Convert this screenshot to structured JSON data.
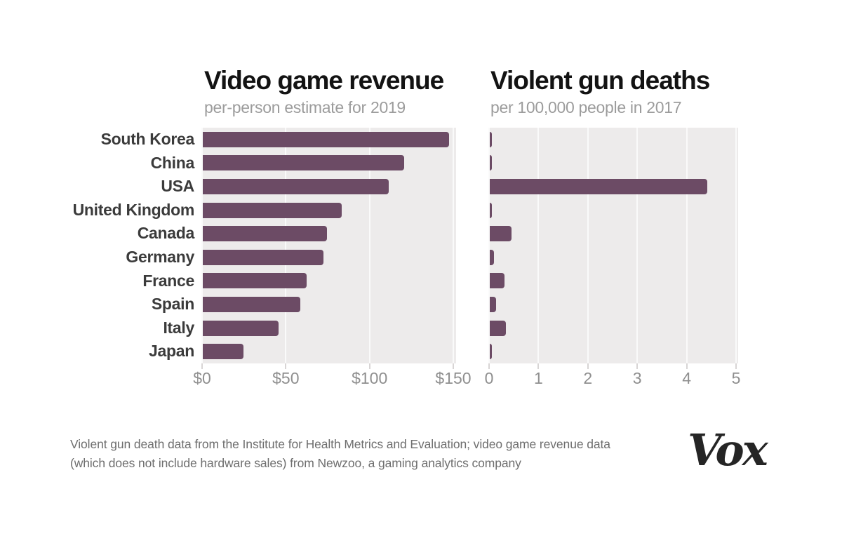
{
  "colors": {
    "bar": "#6c4b65",
    "plot_background": "#edebeb",
    "gridline": "#fafafa",
    "title": "#131313",
    "subtitle": "#9c9c9c",
    "category_label": "#3b3b3b",
    "axis_label": "#8f8f8f",
    "footer_text": "#6e6e6e"
  },
  "chart_data": [
    {
      "type": "bar",
      "orientation": "horizontal",
      "title": "Video game revenue",
      "subtitle": "per-person estimate for 2019",
      "categories": [
        "South Korea",
        "China",
        "USA",
        "United Kingdom",
        "Canada",
        "Germany",
        "France",
        "Spain",
        "Italy",
        "Japan"
      ],
      "values": [
        148,
        121,
        112,
        84,
        75,
        73,
        63,
        59,
        46,
        25
      ],
      "xlim": [
        0,
        150
      ],
      "tick_values": [
        0,
        50,
        100,
        150
      ],
      "tick_labels": [
        "$0",
        "$50",
        "$100",
        "$150"
      ],
      "grid": true,
      "legend": false
    },
    {
      "type": "bar",
      "orientation": "horizontal",
      "title": "Violent gun deaths",
      "subtitle": "per 100,000 people in 2017",
      "categories": [
        "South Korea",
        "China",
        "USA",
        "United Kingdom",
        "Canada",
        "Germany",
        "France",
        "Spain",
        "Italy",
        "Japan"
      ],
      "values": [
        0.05,
        0.04,
        4.43,
        0.06,
        0.47,
        0.12,
        0.32,
        0.15,
        0.35,
        0.03
      ],
      "xlim": [
        0,
        5
      ],
      "tick_values": [
        0,
        1,
        2,
        3,
        4,
        5
      ],
      "tick_labels": [
        "0",
        "1",
        "2",
        "3",
        "4",
        "5"
      ],
      "grid": true,
      "legend": false
    }
  ],
  "footer": {
    "line1": "Violent gun death data from the Institute for Health Metrics and Evaluation; video game revenue data",
    "line2": "(which does not include hardware sales) from Newzoo, a gaming analytics company"
  },
  "logo": {
    "text": "Vox"
  }
}
